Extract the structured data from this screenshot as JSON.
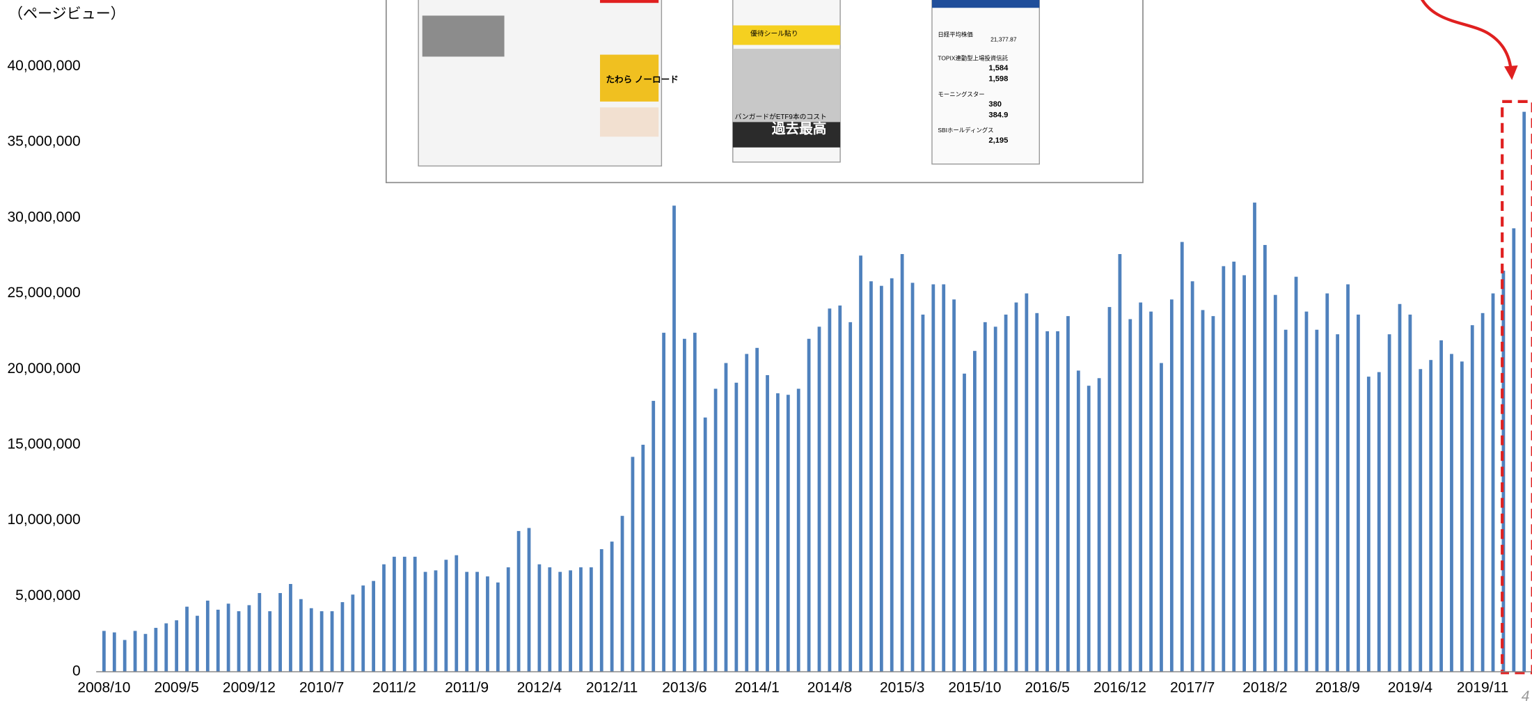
{
  "chart_data": {
    "type": "bar",
    "ylabel": "（ページビュー）",
    "color": "#4f81bd",
    "grid": false,
    "ylim": [
      0,
      40000000
    ],
    "yticks": [
      0,
      {
        "value": 5000000,
        "label": "5,000,000"
      },
      {
        "value": 10000000,
        "label": "10,000,000"
      },
      {
        "value": 15000000,
        "label": "15,000,000"
      },
      {
        "value": 20000000,
        "label": "20,000,000"
      },
      {
        "value": 25000000,
        "label": "25,000,000"
      },
      {
        "value": 30000000,
        "label": "30,000,000"
      },
      {
        "value": 35000000,
        "label": "35,000,000"
      },
      {
        "value": 40000000,
        "label": "40,000,000"
      }
    ],
    "categories": [
      "2008/10",
      null,
      null,
      null,
      null,
      null,
      null,
      "2009/5",
      null,
      null,
      null,
      null,
      null,
      null,
      "2009/12",
      null,
      null,
      null,
      null,
      null,
      null,
      "2010/7",
      null,
      null,
      null,
      null,
      null,
      null,
      "2011/2",
      null,
      null,
      null,
      null,
      null,
      null,
      "2011/9",
      null,
      null,
      null,
      null,
      null,
      null,
      "2012/4",
      null,
      null,
      null,
      null,
      null,
      null,
      "2012/11",
      null,
      null,
      null,
      null,
      null,
      null,
      "2013/6",
      null,
      null,
      null,
      null,
      null,
      null,
      "2014/1",
      null,
      null,
      null,
      null,
      null,
      null,
      "2014/8",
      null,
      null,
      null,
      null,
      null,
      null,
      "2015/3",
      null,
      null,
      null,
      null,
      null,
      null,
      "2015/10",
      null,
      null,
      null,
      null,
      null,
      null,
      "2016/5",
      null,
      null,
      null,
      null,
      null,
      null,
      "2016/12",
      null,
      null,
      null,
      null,
      null,
      null,
      "2017/7",
      null,
      null,
      null,
      null,
      null,
      null,
      "2018/2",
      null,
      null,
      null,
      null,
      null,
      null,
      "2018/9",
      null,
      null,
      null,
      null,
      null,
      null,
      "2019/4",
      null,
      null,
      null,
      null,
      null,
      null,
      "2019/11",
      null,
      null,
      null,
      null
    ],
    "values": [
      2700000,
      2600000,
      2100000,
      2700000,
      2500000,
      2900000,
      3200000,
      3400000,
      4300000,
      3700000,
      4700000,
      4100000,
      4500000,
      4000000,
      4400000,
      5200000,
      4000000,
      5200000,
      5800000,
      4800000,
      4200000,
      4000000,
      4000000,
      4600000,
      5100000,
      5700000,
      6000000,
      7100000,
      7600000,
      7600000,
      7600000,
      6600000,
      6700000,
      7400000,
      7700000,
      6600000,
      6600000,
      6300000,
      5900000,
      6900000,
      9300000,
      9500000,
      7100000,
      6900000,
      6600000,
      6700000,
      6900000,
      6900000,
      8100000,
      8600000,
      10300000,
      14200000,
      15000000,
      17900000,
      22400000,
      30800000,
      22000000,
      22400000,
      16800000,
      18700000,
      20400000,
      19100000,
      21000000,
      21400000,
      19600000,
      18400000,
      18300000,
      18700000,
      22000000,
      22800000,
      24000000,
      24200000,
      23100000,
      27500000,
      25800000,
      25500000,
      26000000,
      27600000,
      25700000,
      23600000,
      25600000,
      25600000,
      24600000,
      19700000,
      21200000,
      23100000,
      22800000,
      23600000,
      24400000,
      25000000,
      23700000,
      22500000,
      22500000,
      23500000,
      19900000,
      18900000,
      19400000,
      24100000,
      27600000,
      23300000,
      24400000,
      23800000,
      20400000,
      24600000,
      28400000,
      25800000,
      23900000,
      23500000,
      26800000,
      27100000,
      26200000,
      31000000,
      28200000,
      24900000,
      22600000,
      26100000,
      23800000,
      22600000,
      25000000,
      22300000,
      25600000,
      23600000,
      19500000,
      19800000,
      22300000,
      24300000,
      23600000,
      20000000,
      20600000,
      21900000,
      21000000,
      20500000,
      22900000,
      23700000,
      25000000,
      26500000,
      29300000,
      37000000
    ],
    "annotations": {
      "page_number": "4",
      "inset": [
        "たわら ノーロード",
        "優待シール貼り",
        "バンガードがETF9本のコスト",
        "過去最高",
        "日経平均株価",
        "21,377.87",
        "TOPIX連動型上場投資信託",
        "1,584",
        "1,598",
        "モーニングスター",
        "380",
        "384.9",
        "SBIホールディングス",
        "2,195"
      ]
    }
  }
}
